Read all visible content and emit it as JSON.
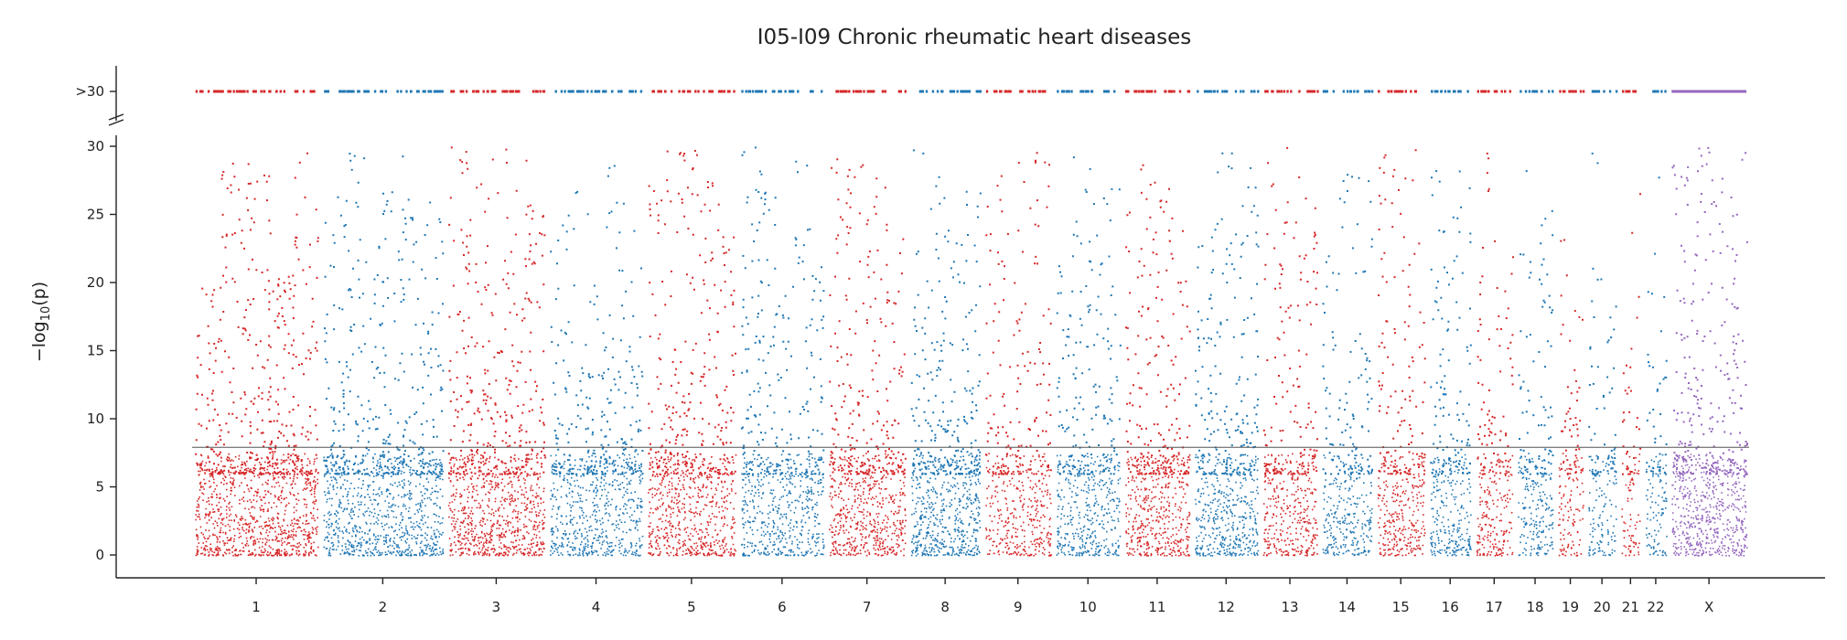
{
  "chart_data": {
    "type": "scatter",
    "title": "I05-I09 Chronic rheumatic heart diseases",
    "ylabel": "−log10(p)",
    "ylabel_main": "−log",
    "ylabel_sub": "10",
    "ylabel_tail": "(p)",
    "xlabel": "",
    "ylim": [
      0,
      30
    ],
    "yticks": [
      0,
      5,
      10,
      15,
      20,
      25,
      30
    ],
    "ytick_labels": [
      "0",
      "5",
      "10",
      "15",
      "20",
      "25",
      "30"
    ],
    "y_break_label": ">30",
    "threshold": 7.9,
    "grid": false,
    "legend": "none",
    "chromosomes": [
      {
        "name": "1",
        "start": 0,
        "end": 249,
        "color": "#d62728",
        "density": 1.0,
        "peaks": [
          20,
          29,
          29,
          21,
          30
        ]
      },
      {
        "name": "2",
        "start": 249,
        "end": 492,
        "color": "#1f77b4",
        "density": 0.9,
        "peaks": [
          28,
          30,
          24,
          30,
          28,
          26
        ]
      },
      {
        "name": "3",
        "start": 492,
        "end": 690,
        "color": "#d62728",
        "density": 1.0,
        "peaks": [
          30,
          28,
          30,
          30,
          26
        ]
      },
      {
        "name": "4",
        "start": 690,
        "end": 880,
        "color": "#1f77b4",
        "density": 0.8,
        "peaks": [
          26,
          28,
          20,
          29,
          24
        ]
      },
      {
        "name": "5",
        "start": 880,
        "end": 1061,
        "color": "#d62728",
        "density": 0.9,
        "peaks": [
          28,
          30,
          30,
          28,
          24
        ]
      },
      {
        "name": "6",
        "start": 1061,
        "end": 1232,
        "color": "#1f77b4",
        "density": 0.8,
        "peaks": [
          30,
          29,
          22,
          29,
          24
        ]
      },
      {
        "name": "7",
        "start": 1232,
        "end": 1391,
        "color": "#d62728",
        "density": 0.9,
        "peaks": [
          30,
          29,
          28,
          25
        ]
      },
      {
        "name": "8",
        "start": 1391,
        "end": 1536,
        "color": "#1f77b4",
        "density": 1.0,
        "peaks": [
          30,
          30,
          28,
          30,
          28
        ]
      },
      {
        "name": "9",
        "start": 1536,
        "end": 1674,
        "color": "#d62728",
        "density": 0.7,
        "peaks": [
          29,
          24,
          30,
          30
        ]
      },
      {
        "name": "10",
        "start": 1674,
        "end": 1808,
        "color": "#1f77b4",
        "density": 0.8,
        "peaks": [
          22,
          30,
          29,
          28
        ]
      },
      {
        "name": "11",
        "start": 1808,
        "end": 1943,
        "color": "#d62728",
        "density": 0.9,
        "peaks": [
          30,
          30,
          28,
          25
        ]
      },
      {
        "name": "12",
        "start": 1943,
        "end": 2076,
        "color": "#1f77b4",
        "density": 0.9,
        "peaks": [
          26,
          30,
          30,
          29
        ]
      },
      {
        "name": "13",
        "start": 2076,
        "end": 2191,
        "color": "#d62728",
        "density": 0.8,
        "peaks": [
          29,
          30,
          27
        ]
      },
      {
        "name": "14",
        "start": 2191,
        "end": 2298,
        "color": "#1f77b4",
        "density": 0.7,
        "peaks": [
          22,
          28,
          29
        ]
      },
      {
        "name": "15",
        "start": 2298,
        "end": 2400,
        "color": "#d62728",
        "density": 0.8,
        "peaks": [
          30,
          28,
          30
        ]
      },
      {
        "name": "16",
        "start": 2400,
        "end": 2490,
        "color": "#1f77b4",
        "density": 0.8,
        "peaks": [
          30,
          28,
          29
        ]
      },
      {
        "name": "17",
        "start": 2490,
        "end": 2571,
        "color": "#d62728",
        "density": 0.7,
        "peaks": [
          30,
          24,
          23
        ]
      },
      {
        "name": "18",
        "start": 2571,
        "end": 2649,
        "color": "#1f77b4",
        "density": 0.7,
        "peaks": [
          29,
          30,
          26
        ]
      },
      {
        "name": "19",
        "start": 2649,
        "end": 2708,
        "color": "#d62728",
        "density": 0.6,
        "peaks": [
          24,
          22,
          18
        ]
      },
      {
        "name": "20",
        "start": 2708,
        "end": 2772,
        "color": "#1f77b4",
        "density": 0.6,
        "peaks": [
          30,
          22,
          19
        ]
      },
      {
        "name": "21",
        "start": 2772,
        "end": 2819,
        "color": "#d62728",
        "density": 0.5,
        "peaks": [
          14,
          28
        ]
      },
      {
        "name": "22",
        "start": 2819,
        "end": 2870,
        "color": "#1f77b4",
        "density": 0.6,
        "peaks": [
          30,
          28,
          20
        ]
      },
      {
        "name": "X",
        "start": 2870,
        "end": 3026,
        "color": "#9467bd",
        "density": 1.0,
        "peaks": [
          30,
          30,
          30,
          30,
          30,
          30
        ]
      }
    ]
  }
}
